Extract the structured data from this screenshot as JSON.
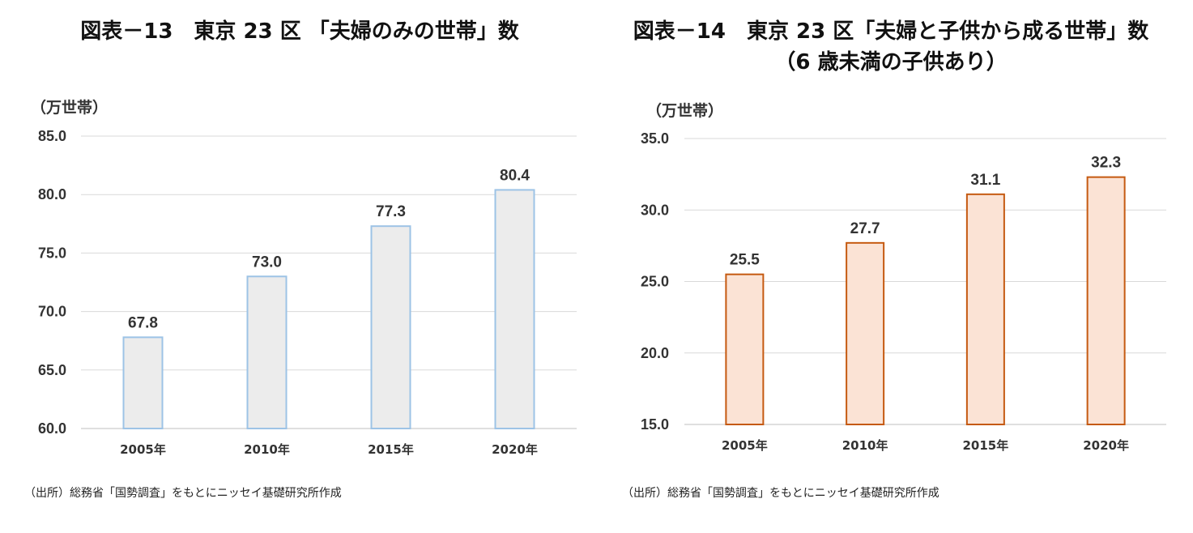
{
  "left": {
    "title": "図表－13　東京 23 区 「夫婦のみの世帯」数",
    "unit": "（万世帯）",
    "source": "（出所）総務省「国勢調査」をもとにニッセイ基礎研究所作成"
  },
  "right": {
    "title_line1": "図表－14　東京 23 区「夫婦と子供から成る世帯」数",
    "title_line2": "（6 歳未満の子供あり）",
    "unit": "（万世帯）",
    "source": "（出所）総務省「国勢調査」をもとにニッセイ基礎研究所作成"
  },
  "chart_data": [
    {
      "type": "bar",
      "categories": [
        "2005年",
        "2010年",
        "2015年",
        "2020年"
      ],
      "values": [
        67.8,
        73.0,
        77.3,
        80.4
      ],
      "ylim": [
        60.0,
        85.0
      ],
      "yticks": [
        60.0,
        65.0,
        70.0,
        75.0,
        80.0,
        85.0
      ],
      "grid": true,
      "colors": {
        "fill": "#ececec",
        "stroke": "#9dc3e6"
      }
    },
    {
      "type": "bar",
      "categories": [
        "2005年",
        "2010年",
        "2015年",
        "2020年"
      ],
      "values": [
        25.5,
        27.7,
        31.1,
        32.3
      ],
      "ylim": [
        15.0,
        35.0
      ],
      "yticks": [
        15.0,
        20.0,
        25.0,
        30.0,
        35.0
      ],
      "grid": true,
      "colors": {
        "fill": "#fbe3d5",
        "stroke": "#c55a11"
      }
    }
  ]
}
